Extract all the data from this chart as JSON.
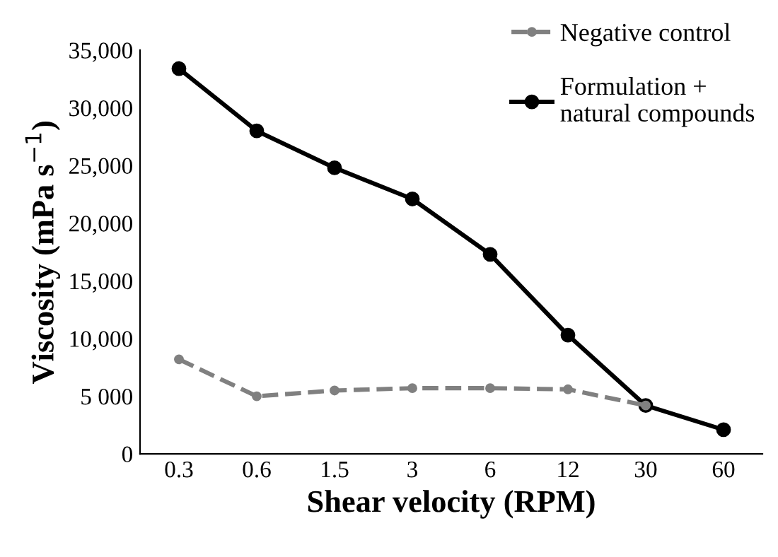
{
  "chart_data": {
    "type": "line",
    "xlabel": "Shear velocity (RPM)",
    "ylabel": "Viscosity (mPa s$^{−1}$)",
    "categories": [
      "0.3",
      "0.6",
      "1.5",
      "3",
      "6",
      "12",
      "30",
      "60"
    ],
    "series": [
      {
        "name": "Negative control",
        "color": "#808080",
        "line_style": "dashed",
        "values": [
          8200,
          5000,
          5500,
          5700,
          5700,
          5600,
          4200,
          null
        ]
      },
      {
        "name": "Formulation +\nnatural compounds",
        "color": "#000000",
        "line_style": "solid",
        "values": [
          33400,
          28000,
          24800,
          22100,
          17300,
          10300,
          4200,
          2100
        ]
      }
    ],
    "ylim": [
      0,
      35000
    ],
    "yticks": [
      0,
      {
        "value": 5000,
        "label": "5 000"
      },
      {
        "value": 10000,
        "label": "10,000"
      },
      {
        "value": 15000,
        "label": "15,000"
      },
      {
        "value": 20000,
        "label": "20,000"
      },
      {
        "value": 25000,
        "label": "25,000"
      },
      {
        "value": 30000,
        "label": "30,000"
      },
      {
        "value": 35000,
        "label": "35,000"
      }
    ],
    "marker": "circle",
    "grid": false,
    "legend": "top right"
  }
}
